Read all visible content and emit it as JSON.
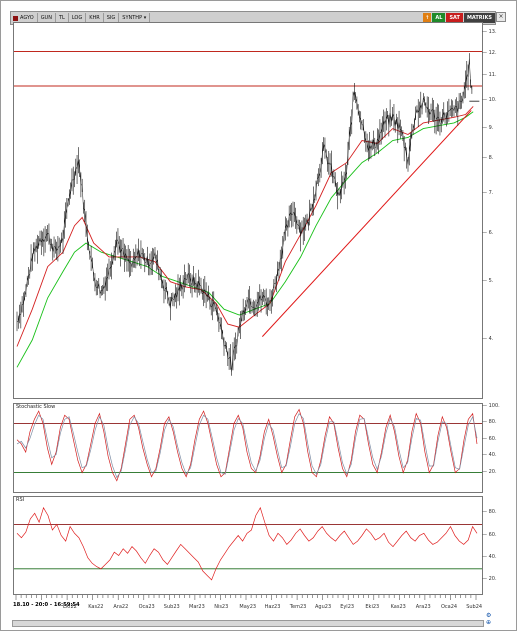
{
  "toolbar": {
    "symbol": "AGYO",
    "items": [
      "GUN",
      "TL",
      "LOG",
      "KHR",
      "SIG",
      "SYNTHP"
    ],
    "dropdown_icon": "chevron-down-icon",
    "buttons": {
      "up": "↑",
      "al": "AL",
      "sat": "SAT",
      "matriks": "MATRIKS"
    },
    "colors": {
      "up": "#e07f12",
      "al": "#1f8a2a",
      "sat": "#c81d1d",
      "matriks": "#404040"
    }
  },
  "panels": {
    "stoch_label": "Stochastic Slow",
    "rsi_label": "RSI"
  },
  "status": {
    "datetime": "18.10 - 20:0 - 16:59:54"
  },
  "xaxis": {
    "labels": [
      "Eki22",
      "Kas22",
      "Ara22",
      "Oca23",
      "Sub23",
      "Mar23",
      "Nis23",
      "May23",
      "Haz23",
      "Tem23",
      "Agu23",
      "Eyl23",
      "Eki23",
      "Kas23",
      "Ara23",
      "Oca24",
      "Sub24"
    ]
  },
  "chart_data": [
    {
      "type": "line",
      "title": "",
      "yscale": "log",
      "ylim": [
        3.2,
        13.5
      ],
      "yticks": [
        4,
        5,
        6,
        7,
        8,
        9,
        10,
        11,
        12,
        13
      ],
      "colors": {
        "price": "#111111",
        "ma_fast": "#d42020",
        "ma_slow": "#18c018",
        "hline": "#c0281e",
        "trend": "#e01818"
      },
      "price_points": [
        [
          0,
          4.3
        ],
        [
          4,
          4.7
        ],
        [
          8,
          5.5
        ],
        [
          12,
          5.9
        ],
        [
          16,
          6.0
        ],
        [
          20,
          5.6
        ],
        [
          24,
          5.9
        ],
        [
          28,
          7.2
        ],
        [
          32,
          8.0
        ],
        [
          36,
          6.2
        ],
        [
          40,
          5.1
        ],
        [
          44,
          4.8
        ],
        [
          48,
          5.2
        ],
        [
          52,
          5.9
        ],
        [
          56,
          5.5
        ],
        [
          60,
          5.3
        ],
        [
          64,
          5.6
        ],
        [
          68,
          5.4
        ],
        [
          72,
          5.5
        ],
        [
          76,
          5.0
        ],
        [
          80,
          4.6
        ],
        [
          84,
          4.8
        ],
        [
          88,
          5.1
        ],
        [
          92,
          5.0
        ],
        [
          96,
          4.9
        ],
        [
          100,
          4.7
        ],
        [
          104,
          4.5
        ],
        [
          108,
          4.0
        ],
        [
          112,
          3.6
        ],
        [
          116,
          4.2
        ],
        [
          120,
          4.7
        ],
        [
          124,
          4.6
        ],
        [
          128,
          4.7
        ],
        [
          132,
          4.6
        ],
        [
          136,
          5.2
        ],
        [
          140,
          6.0
        ],
        [
          144,
          6.6
        ],
        [
          148,
          6.1
        ],
        [
          152,
          6.3
        ],
        [
          156,
          7.2
        ],
        [
          160,
          8.3
        ],
        [
          164,
          7.7
        ],
        [
          168,
          6.9
        ],
        [
          172,
          7.6
        ],
        [
          176,
          10.4
        ],
        [
          180,
          9.2
        ],
        [
          184,
          8.3
        ],
        [
          188,
          8.6
        ],
        [
          192,
          9.2
        ],
        [
          196,
          9.4
        ],
        [
          200,
          9.0
        ],
        [
          204,
          8.0
        ],
        [
          208,
          9.6
        ],
        [
          212,
          9.9
        ],
        [
          216,
          9.6
        ],
        [
          220,
          9.3
        ],
        [
          224,
          9.5
        ],
        [
          228,
          9.6
        ],
        [
          232,
          9.9
        ],
        [
          236,
          11.5
        ],
        [
          238,
          9.7
        ]
      ],
      "ma_fast_points": [
        [
          0,
          3.9
        ],
        [
          8,
          4.5
        ],
        [
          16,
          5.3
        ],
        [
          24,
          5.6
        ],
        [
          30,
          6.2
        ],
        [
          34,
          6.4
        ],
        [
          40,
          5.8
        ],
        [
          48,
          5.5
        ],
        [
          56,
          5.5
        ],
        [
          64,
          5.5
        ],
        [
          72,
          5.4
        ],
        [
          80,
          5.0
        ],
        [
          88,
          4.9
        ],
        [
          96,
          4.85
        ],
        [
          104,
          4.6
        ],
        [
          110,
          4.25
        ],
        [
          116,
          4.2
        ],
        [
          124,
          4.4
        ],
        [
          132,
          4.6
        ],
        [
          140,
          5.4
        ],
        [
          148,
          6.0
        ],
        [
          156,
          6.7
        ],
        [
          164,
          7.6
        ],
        [
          172,
          7.9
        ],
        [
          180,
          8.6
        ],
        [
          188,
          8.5
        ],
        [
          196,
          9.0
        ],
        [
          204,
          8.8
        ],
        [
          212,
          9.2
        ],
        [
          220,
          9.3
        ],
        [
          228,
          9.4
        ],
        [
          234,
          9.5
        ],
        [
          238,
          9.8
        ]
      ],
      "ma_slow_points": [
        [
          0,
          3.6
        ],
        [
          8,
          4.0
        ],
        [
          16,
          4.7
        ],
        [
          24,
          5.2
        ],
        [
          30,
          5.6
        ],
        [
          36,
          5.8
        ],
        [
          44,
          5.6
        ],
        [
          52,
          5.5
        ],
        [
          60,
          5.4
        ],
        [
          68,
          5.3
        ],
        [
          76,
          5.1
        ],
        [
          84,
          5.0
        ],
        [
          92,
          4.9
        ],
        [
          100,
          4.8
        ],
        [
          108,
          4.5
        ],
        [
          116,
          4.4
        ],
        [
          124,
          4.5
        ],
        [
          132,
          4.6
        ],
        [
          140,
          5.0
        ],
        [
          148,
          5.5
        ],
        [
          156,
          6.2
        ],
        [
          164,
          6.9
        ],
        [
          172,
          7.4
        ],
        [
          180,
          7.9
        ],
        [
          188,
          8.2
        ],
        [
          196,
          8.6
        ],
        [
          204,
          8.7
        ],
        [
          212,
          9.0
        ],
        [
          220,
          9.1
        ],
        [
          228,
          9.2
        ],
        [
          234,
          9.4
        ],
        [
          238,
          9.6
        ]
      ],
      "horizontal_lines": [
        12.1,
        10.6
      ],
      "trendline": [
        [
          128,
          4.05
        ],
        [
          237,
          9.65
        ]
      ],
      "current_marker": [
        236,
        10.0
      ]
    },
    {
      "type": "line",
      "title": "Stochastic Slow",
      "ylim": [
        0,
        100
      ],
      "yticks": [
        20,
        40,
        60,
        80,
        100
      ],
      "levels": [
        20,
        80
      ],
      "series": [
        {
          "name": "",
          "color": "#d42020",
          "values": [
            60,
            55,
            45,
            70,
            85,
            95,
            80,
            50,
            30,
            45,
            75,
            90,
            85,
            60,
            35,
            20,
            30,
            55,
            80,
            92,
            70,
            40,
            20,
            10,
            25,
            55,
            85,
            90,
            75,
            50,
            30,
            15,
            25,
            50,
            80,
            88,
            70,
            45,
            25,
            15,
            30,
            60,
            85,
            95,
            80,
            55,
            30,
            15,
            20,
            50,
            80,
            90,
            75,
            45,
            25,
            20,
            40,
            70,
            85,
            65,
            40,
            20,
            30,
            60,
            88,
            97,
            80,
            45,
            20,
            15,
            35,
            65,
            88,
            80,
            50,
            25,
            15,
            35,
            70,
            90,
            85,
            55,
            30,
            20,
            45,
            75,
            90,
            70,
            40,
            20,
            35,
            70,
            92,
            80,
            45,
            20,
            30,
            65,
            88,
            75,
            45,
            20,
            25,
            60,
            85,
            92,
            55
          ]
        },
        {
          "name": "",
          "color": "#7f8fa6",
          "values": [
            55,
            58,
            50,
            62,
            78,
            90,
            85,
            60,
            38,
            42,
            68,
            85,
            88,
            68,
            45,
            26,
            28,
            48,
            72,
            88,
            78,
            50,
            28,
            14,
            22,
            48,
            78,
            88,
            80,
            58,
            36,
            20,
            22,
            44,
            72,
            85,
            76,
            52,
            32,
            18,
            26,
            52,
            78,
            90,
            85,
            62,
            38,
            20,
            18,
            44,
            72,
            86,
            80,
            55,
            32,
            22,
            35,
            62,
            80,
            72,
            48,
            26,
            28,
            52,
            80,
            92,
            86,
            55,
            28,
            18,
            30,
            58,
            82,
            82,
            58,
            32,
            18,
            30,
            62,
            85,
            86,
            62,
            38,
            24,
            40,
            68,
            86,
            76,
            48,
            26,
            32,
            62,
            86,
            84,
            55,
            28,
            28,
            58,
            82,
            80,
            52,
            26,
            24,
            52,
            78,
            88,
            62
          ]
        }
      ]
    },
    {
      "type": "line",
      "title": "RSI",
      "ylim": [
        10,
        92
      ],
      "yticks": [
        20,
        40,
        60,
        80
      ],
      "levels": [
        30,
        70
      ],
      "series": [
        {
          "name": "",
          "color": "#e02020",
          "values": [
            62,
            58,
            63,
            75,
            80,
            72,
            85,
            78,
            65,
            70,
            60,
            55,
            68,
            62,
            58,
            50,
            40,
            35,
            32,
            30,
            34,
            38,
            45,
            42,
            48,
            44,
            50,
            46,
            40,
            35,
            42,
            48,
            45,
            38,
            34,
            40,
            46,
            52,
            48,
            44,
            40,
            36,
            28,
            24,
            20,
            30,
            38,
            44,
            50,
            55,
            60,
            55,
            62,
            65,
            78,
            85,
            72,
            60,
            55,
            62,
            58,
            52,
            56,
            62,
            66,
            60,
            55,
            58,
            64,
            68,
            62,
            58,
            55,
            60,
            64,
            58,
            52,
            55,
            60,
            66,
            62,
            56,
            58,
            62,
            54,
            50,
            55,
            60,
            64,
            58,
            55,
            60,
            62,
            56,
            52,
            54,
            58,
            62,
            68,
            60,
            55,
            52,
            56,
            68,
            62
          ]
        }
      ]
    }
  ]
}
